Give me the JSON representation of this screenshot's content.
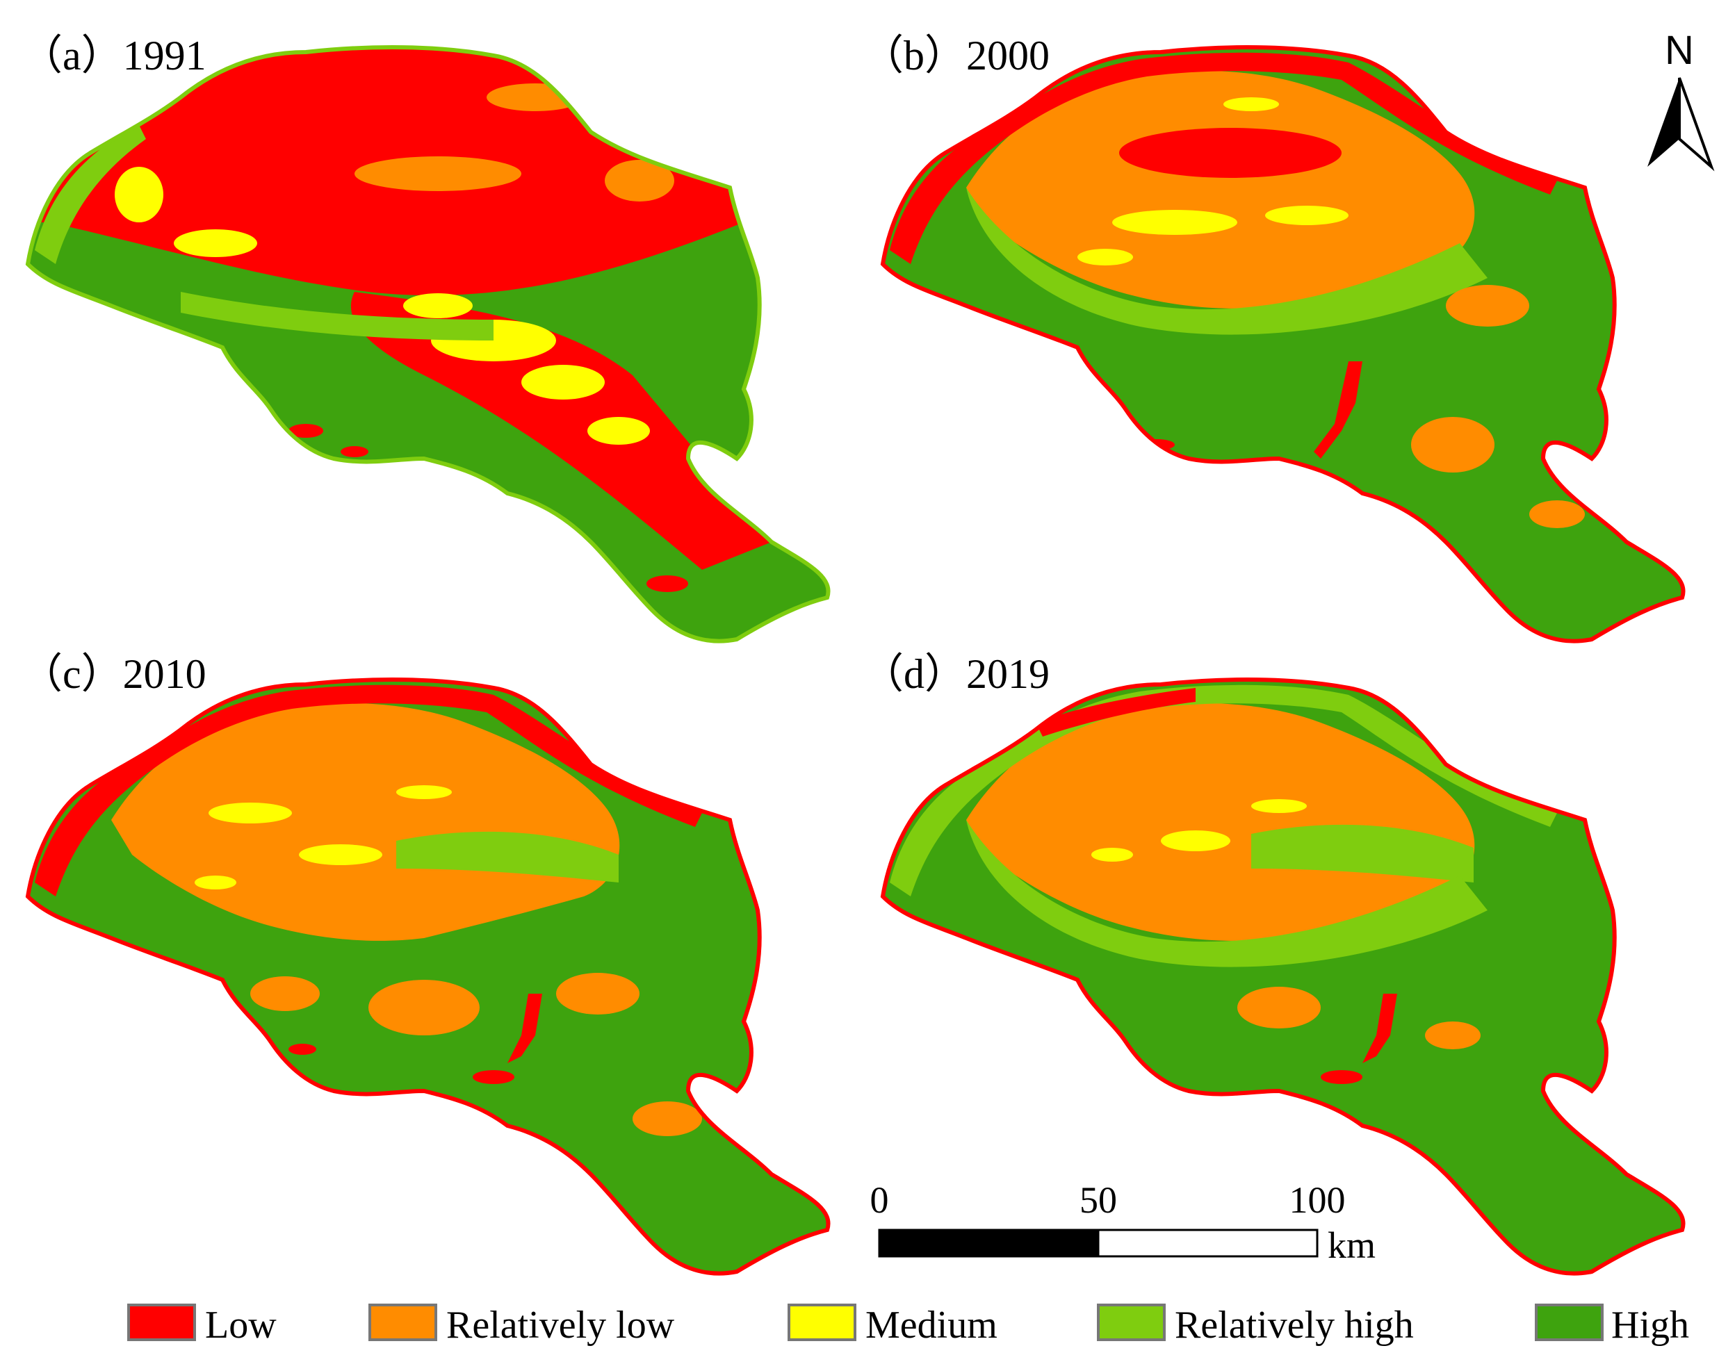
{
  "panels": [
    {
      "label": "（a）1991",
      "dominant": "Low"
    },
    {
      "label": "（b）2000",
      "dominant": "Relatively low"
    },
    {
      "label": "（c）2010",
      "dominant": "High"
    },
    {
      "label": "（d）2019",
      "dominant": "High"
    }
  ],
  "north_arrow": {
    "label": "N"
  },
  "scale_bar": {
    "ticks": [
      "0",
      "50",
      "100"
    ],
    "unit": "km"
  },
  "legend": {
    "items": [
      {
        "label": "Low",
        "color": "#ff0000"
      },
      {
        "label": "Relatively low",
        "color": "#ff8c00"
      },
      {
        "label": "Medium",
        "color": "#ffff00"
      },
      {
        "label": "Relatively high",
        "color": "#7fcd0f"
      },
      {
        "label": "High",
        "color": "#3ea30e"
      }
    ]
  },
  "colors": {
    "low": "#ff0000",
    "relatively_low": "#ff8c00",
    "medium": "#ffff00",
    "relatively_high": "#7fcd0f",
    "high": "#3ea30e"
  }
}
